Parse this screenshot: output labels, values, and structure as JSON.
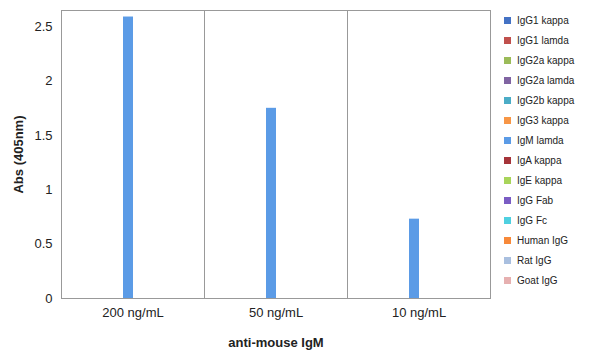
{
  "chart_data": {
    "type": "bar",
    "x_label": "anti-mouse IgM",
    "y_label": "Abs (405nm)",
    "categories": [
      "200 ng/mL",
      "50 ng/mL",
      "10 ng/mL"
    ],
    "series": [
      {
        "name": "IgG1 kappa",
        "color": "#4472c4",
        "values": [
          0,
          0,
          0
        ]
      },
      {
        "name": "IgG1 lamda",
        "color": "#c0504d",
        "values": [
          0,
          0,
          0
        ]
      },
      {
        "name": "IgG2a kappa",
        "color": "#9bbb59",
        "values": [
          0,
          0,
          0
        ]
      },
      {
        "name": "IgG2a lamda",
        "color": "#8064a2",
        "values": [
          0,
          0,
          0
        ]
      },
      {
        "name": "IgG2b kappa",
        "color": "#4bacc6",
        "values": [
          0,
          0,
          0
        ]
      },
      {
        "name": "IgG3 kappa",
        "color": "#f79646",
        "values": [
          0,
          0,
          0
        ]
      },
      {
        "name": "IgM lamda",
        "color": "#5b9be6",
        "values": [
          2.59,
          1.75,
          0.73
        ]
      },
      {
        "name": "IgA kappa",
        "color": "#a5343a",
        "values": [
          0,
          0,
          0
        ]
      },
      {
        "name": "IgE kappa",
        "color": "#a8d45a",
        "values": [
          0,
          0,
          0
        ]
      },
      {
        "name": "IgG Fab",
        "color": "#7a5cc4",
        "values": [
          0,
          0,
          0
        ]
      },
      {
        "name": "IgG Fc",
        "color": "#4fd0e0",
        "values": [
          0,
          0,
          0
        ]
      },
      {
        "name": "Human IgG",
        "color": "#f7893a",
        "values": [
          0,
          0,
          0
        ]
      },
      {
        "name": "Rat IgG",
        "color": "#a9bfdf",
        "values": [
          0,
          0,
          0
        ]
      },
      {
        "name": "Goat IgG",
        "color": "#e6b0b0",
        "values": [
          0,
          0,
          0
        ]
      }
    ],
    "ylim": [
      0,
      2.65
    ],
    "yticks": [
      0,
      0.5,
      1,
      1.5,
      2,
      2.5
    ],
    "grid": false,
    "legend": "right"
  }
}
